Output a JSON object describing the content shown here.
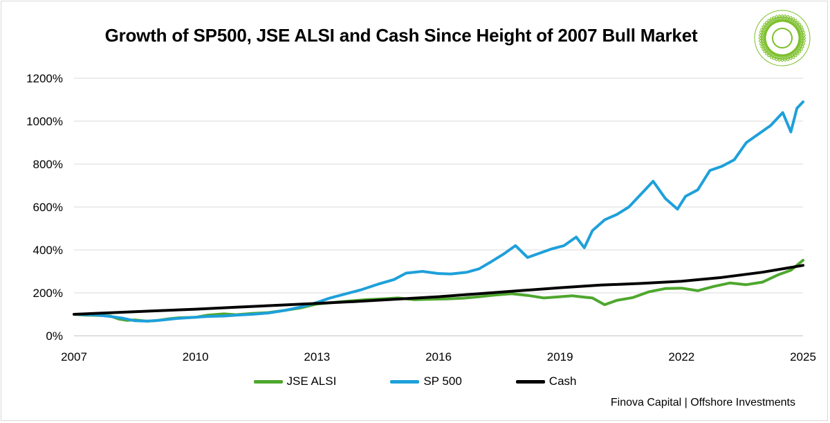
{
  "chart_data": {
    "type": "line",
    "title": "Growth of SP500, JSE ALSI and Cash Since Height of 2007 Bull Market",
    "xlabel": "",
    "ylabel": "",
    "xlim": [
      2007,
      2025
    ],
    "ylim": [
      0,
      1200
    ],
    "x_ticks": [
      "2007",
      "2010",
      "2013",
      "2016",
      "2019",
      "2022",
      "2025"
    ],
    "y_ticks": [
      "0%",
      "200%",
      "400%",
      "600%",
      "800%",
      "1000%",
      "1200%"
    ],
    "grid": "horizontal",
    "legend": "bottom",
    "series": [
      {
        "name": "JSE ALSI",
        "color": "#4ea72e",
        "points": [
          [
            2007.0,
            100
          ],
          [
            2007.3,
            96
          ],
          [
            2007.6,
            95
          ],
          [
            2007.9,
            92
          ],
          [
            2008.1,
            78
          ],
          [
            2008.3,
            72
          ],
          [
            2008.5,
            74
          ],
          [
            2008.8,
            68
          ],
          [
            2009.0,
            70
          ],
          [
            2009.3,
            78
          ],
          [
            2009.6,
            84
          ],
          [
            2010.0,
            86
          ],
          [
            2010.3,
            96
          ],
          [
            2010.7,
            102
          ],
          [
            2011.0,
            98
          ],
          [
            2011.4,
            104
          ],
          [
            2011.8,
            108
          ],
          [
            2012.2,
            118
          ],
          [
            2012.6,
            130
          ],
          [
            2013.0,
            148
          ],
          [
            2013.4,
            155
          ],
          [
            2013.8,
            162
          ],
          [
            2014.2,
            168
          ],
          [
            2014.6,
            172
          ],
          [
            2015.0,
            176
          ],
          [
            2015.4,
            168
          ],
          [
            2015.8,
            170
          ],
          [
            2016.2,
            172
          ],
          [
            2016.6,
            175
          ],
          [
            2017.0,
            182
          ],
          [
            2017.4,
            190
          ],
          [
            2017.8,
            196
          ],
          [
            2018.2,
            188
          ],
          [
            2018.6,
            176
          ],
          [
            2019.0,
            182
          ],
          [
            2019.3,
            186
          ],
          [
            2019.6,
            180
          ],
          [
            2019.8,
            176
          ],
          [
            2020.1,
            145
          ],
          [
            2020.4,
            165
          ],
          [
            2020.8,
            178
          ],
          [
            2021.2,
            205
          ],
          [
            2021.6,
            220
          ],
          [
            2022.0,
            222
          ],
          [
            2022.4,
            210
          ],
          [
            2022.8,
            230
          ],
          [
            2023.2,
            246
          ],
          [
            2023.6,
            238
          ],
          [
            2024.0,
            250
          ],
          [
            2024.4,
            285
          ],
          [
            2024.7,
            305
          ],
          [
            2025.0,
            352
          ]
        ]
      },
      {
        "name": "SP 500",
        "color": "#1ea0da",
        "points": [
          [
            2007.0,
            100
          ],
          [
            2007.3,
            98
          ],
          [
            2007.6,
            96
          ],
          [
            2007.9,
            90
          ],
          [
            2008.2,
            82
          ],
          [
            2008.5,
            70
          ],
          [
            2008.8,
            68
          ],
          [
            2009.1,
            72
          ],
          [
            2009.5,
            80
          ],
          [
            2010.0,
            86
          ],
          [
            2010.3,
            90
          ],
          [
            2010.7,
            92
          ],
          [
            2011.0,
            96
          ],
          [
            2011.4,
            100
          ],
          [
            2011.8,
            106
          ],
          [
            2012.2,
            118
          ],
          [
            2012.6,
            134
          ],
          [
            2013.0,
            155
          ],
          [
            2013.3,
            175
          ],
          [
            2013.7,
            195
          ],
          [
            2014.1,
            215
          ],
          [
            2014.5,
            240
          ],
          [
            2014.9,
            262
          ],
          [
            2015.2,
            292
          ],
          [
            2015.6,
            300
          ],
          [
            2016.0,
            290
          ],
          [
            2016.3,
            288
          ],
          [
            2016.7,
            296
          ],
          [
            2017.0,
            312
          ],
          [
            2017.3,
            345
          ],
          [
            2017.6,
            380
          ],
          [
            2017.9,
            420
          ],
          [
            2018.2,
            365
          ],
          [
            2018.5,
            385
          ],
          [
            2018.8,
            405
          ],
          [
            2019.1,
            420
          ],
          [
            2019.4,
            460
          ],
          [
            2019.6,
            410
          ],
          [
            2019.8,
            490
          ],
          [
            2020.1,
            540
          ],
          [
            2020.4,
            565
          ],
          [
            2020.7,
            600
          ],
          [
            2021.0,
            660
          ],
          [
            2021.3,
            720
          ],
          [
            2021.6,
            640
          ],
          [
            2021.9,
            590
          ],
          [
            2022.1,
            650
          ],
          [
            2022.4,
            680
          ],
          [
            2022.7,
            770
          ],
          [
            2023.0,
            790
          ],
          [
            2023.3,
            820
          ],
          [
            2023.6,
            900
          ],
          [
            2023.9,
            940
          ],
          [
            2024.2,
            980
          ],
          [
            2024.5,
            1040
          ],
          [
            2024.7,
            950
          ],
          [
            2024.85,
            1060
          ],
          [
            2025.0,
            1090
          ]
        ]
      },
      {
        "name": "Cash",
        "color": "#000000",
        "points": [
          [
            2007.0,
            100
          ],
          [
            2008.0,
            108
          ],
          [
            2009.0,
            116
          ],
          [
            2010.0,
            124
          ],
          [
            2011.0,
            133
          ],
          [
            2012.0,
            142
          ],
          [
            2013.0,
            151
          ],
          [
            2014.0,
            160
          ],
          [
            2015.0,
            171
          ],
          [
            2016.0,
            182
          ],
          [
            2017.0,
            196
          ],
          [
            2018.0,
            210
          ],
          [
            2019.0,
            224
          ],
          [
            2020.0,
            236
          ],
          [
            2021.0,
            244
          ],
          [
            2022.0,
            254
          ],
          [
            2023.0,
            272
          ],
          [
            2024.0,
            296
          ],
          [
            2025.0,
            328
          ]
        ]
      }
    ]
  },
  "footer": {
    "text": "Finova Capital | Offshore Investments"
  },
  "logo": {
    "icon": "geometric-flower-logo",
    "color": "#7bbf2a"
  }
}
